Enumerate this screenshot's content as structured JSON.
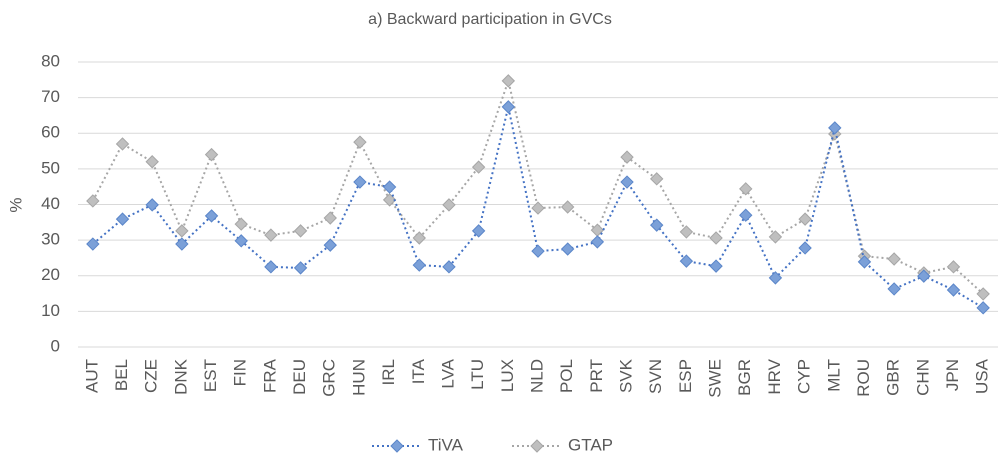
{
  "chart_data": {
    "type": "line",
    "title": "a) Backward participation in GVCs",
    "y_label": "%",
    "categories": [
      "AUT",
      "BEL",
      "CZE",
      "DNK",
      "EST",
      "FIN",
      "FRA",
      "DEU",
      "GRC",
      "HUN",
      "IRL",
      "ITA",
      "LVA",
      "LTU",
      "LUX",
      "NLD",
      "POL",
      "PRT",
      "SVK",
      "SVN",
      "ESP",
      "SWE",
      "BGR",
      "HRV",
      "CYP",
      "MLT",
      "ROU",
      "GBR",
      "CHN",
      "JPN",
      "USA"
    ],
    "series": [
      {
        "name": "TiVA",
        "color": "#4472c4",
        "values": [
          28.9,
          35.9,
          39.9,
          28.9,
          36.8,
          29.8,
          22.5,
          22.2,
          28.6,
          46.3,
          44.9,
          23.0,
          22.5,
          32.6,
          67.4,
          26.9,
          27.5,
          29.5,
          46.3,
          34.2,
          24.1,
          22.7,
          37.0,
          19.4,
          27.8,
          61.5,
          23.9,
          16.3,
          19.9,
          16.0,
          11.0
        ]
      },
      {
        "name": "GTAP",
        "color": "#a6a6a6",
        "values": [
          41.0,
          57.0,
          52.0,
          32.6,
          54.0,
          34.5,
          31.4,
          32.6,
          36.2,
          57.5,
          41.3,
          30.6,
          39.9,
          50.5,
          74.7,
          39.0,
          39.3,
          32.8,
          53.3,
          47.2,
          32.3,
          30.6,
          44.4,
          30.9,
          35.9,
          59.8,
          25.5,
          24.7,
          20.8,
          22.5,
          14.9
        ]
      }
    ],
    "ylim": [
      0,
      80
    ],
    "yticks": [
      0,
      10,
      20,
      30,
      40,
      50,
      60,
      70,
      80
    ],
    "grid": true,
    "legend": "bottom"
  }
}
